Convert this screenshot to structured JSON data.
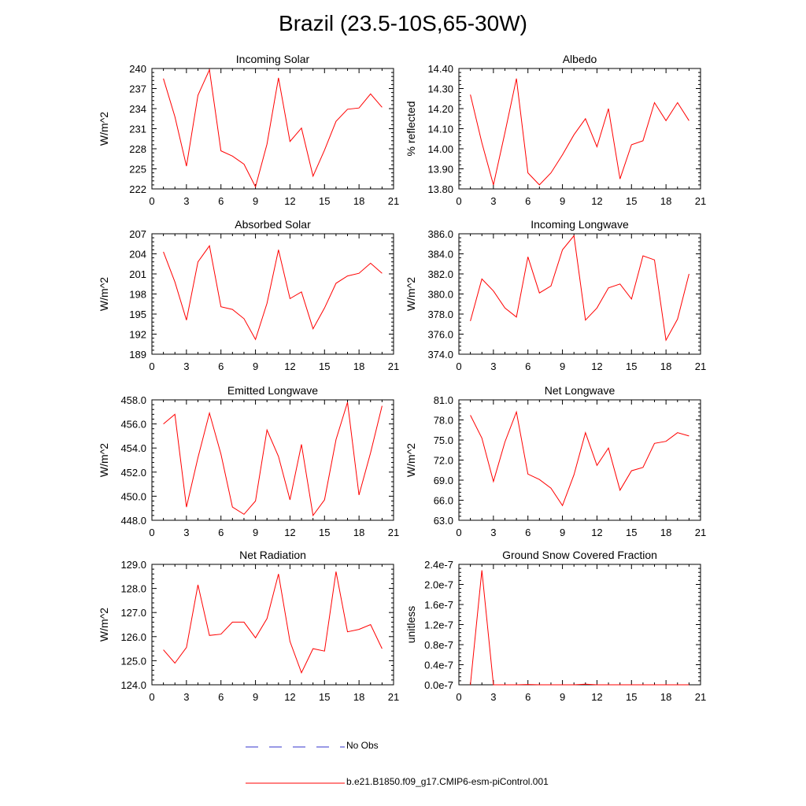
{
  "figure": {
    "title": "Brazil (23.5-10S,65-30W)"
  },
  "legend": {
    "no_obs": {
      "label": "No Obs",
      "color": "#3333cc"
    },
    "model": {
      "label": "b.e21.B1850.f09_g17.CMIP6-esm-piControl.001",
      "color": "#ff0000"
    }
  },
  "chart_data": [
    {
      "type": "line",
      "title": "Incoming Solar",
      "xlabel": "",
      "ylabel": "W/m^2",
      "xlim": [
        0,
        21
      ],
      "ylim": [
        222,
        240
      ],
      "xticks": [
        0,
        3,
        6,
        9,
        12,
        15,
        18,
        21
      ],
      "yticks": [
        222,
        225,
        228,
        231,
        234,
        237,
        240
      ],
      "ytick_labels": [
        "222",
        "225",
        "228",
        "231",
        "234",
        "237",
        "240"
      ],
      "series": [
        {
          "name": "b.e21.B1850.f09_g17.CMIP6-esm-piControl.001",
          "color": "#ff0000",
          "x": [
            1,
            2,
            3,
            4,
            5,
            6,
            7,
            8,
            9,
            10,
            11,
            12,
            13,
            14,
            15,
            16,
            17,
            18,
            19,
            20
          ],
          "values": [
            238.5,
            232.8,
            225.4,
            236.0,
            239.8,
            227.7,
            226.9,
            225.7,
            222.3,
            228.7,
            238.6,
            229.1,
            231.1,
            223.9,
            227.8,
            232.1,
            233.9,
            234.1,
            236.2,
            234.2
          ]
        }
      ]
    },
    {
      "type": "line",
      "title": "Albedo",
      "xlabel": "",
      "ylabel": "% reflected",
      "xlim": [
        0,
        21
      ],
      "ylim": [
        13.8,
        14.4
      ],
      "xticks": [
        0,
        3,
        6,
        9,
        12,
        15,
        18,
        21
      ],
      "yticks": [
        13.8,
        13.9,
        14.0,
        14.1,
        14.2,
        14.3,
        14.4
      ],
      "ytick_labels": [
        "13.80",
        "13.90",
        "14.00",
        "14.10",
        "14.20",
        "14.30",
        "14.40"
      ],
      "series": [
        {
          "name": "b.e21.B1850.f09_g17.CMIP6-esm-piControl.001",
          "color": "#ff0000",
          "x": [
            1,
            2,
            3,
            4,
            5,
            6,
            7,
            8,
            9,
            10,
            11,
            12,
            13,
            14,
            15,
            16,
            17,
            18,
            19,
            20
          ],
          "values": [
            14.27,
            14.03,
            13.82,
            14.08,
            14.35,
            13.88,
            13.82,
            13.88,
            13.97,
            14.07,
            14.15,
            14.01,
            14.2,
            13.85,
            14.02,
            14.04,
            14.23,
            14.14,
            14.23,
            14.14
          ]
        }
      ]
    },
    {
      "type": "line",
      "title": "Absorbed Solar",
      "xlabel": "",
      "ylabel": "W/m^2",
      "xlim": [
        0,
        21
      ],
      "ylim": [
        189,
        207
      ],
      "xticks": [
        0,
        3,
        6,
        9,
        12,
        15,
        18,
        21
      ],
      "yticks": [
        189,
        192,
        195,
        198,
        201,
        204,
        207
      ],
      "ytick_labels": [
        "189",
        "192",
        "195",
        "198",
        "201",
        "204",
        "207"
      ],
      "series": [
        {
          "name": "b.e21.B1850.f09_g17.CMIP6-esm-piControl.001",
          "color": "#ff0000",
          "x": [
            1,
            2,
            3,
            4,
            5,
            6,
            7,
            8,
            9,
            10,
            11,
            12,
            13,
            14,
            15,
            16,
            17,
            18,
            19,
            20
          ],
          "values": [
            204.3,
            199.8,
            194.1,
            202.8,
            205.2,
            196.1,
            195.7,
            194.3,
            191.2,
            196.6,
            204.6,
            197.3,
            198.3,
            192.8,
            195.9,
            199.6,
            200.7,
            201.1,
            202.6,
            201.1
          ]
        }
      ]
    },
    {
      "type": "line",
      "title": "Incoming Longwave",
      "xlabel": "",
      "ylabel": "W/m^2",
      "xlim": [
        0,
        21
      ],
      "ylim": [
        374,
        386
      ],
      "xticks": [
        0,
        3,
        6,
        9,
        12,
        15,
        18,
        21
      ],
      "yticks": [
        374,
        376,
        378,
        380,
        382,
        384,
        386
      ],
      "ytick_labels": [
        "374.0",
        "376.0",
        "378.0",
        "380.0",
        "382.0",
        "384.0",
        "386.0"
      ],
      "series": [
        {
          "name": "b.e21.B1850.f09_g17.CMIP6-esm-piControl.001",
          "color": "#ff0000",
          "x": [
            1,
            2,
            3,
            4,
            5,
            6,
            7,
            8,
            9,
            10,
            11,
            12,
            13,
            14,
            15,
            16,
            17,
            18,
            19,
            20
          ],
          "values": [
            377.3,
            381.5,
            380.3,
            378.6,
            377.7,
            383.7,
            380.1,
            380.8,
            384.4,
            385.8,
            377.4,
            378.6,
            380.6,
            381.0,
            379.5,
            383.8,
            383.4,
            375.4,
            377.5,
            382.0
          ]
        }
      ]
    },
    {
      "type": "line",
      "title": "Emitted Longwave",
      "xlabel": "",
      "ylabel": "W/m^2",
      "xlim": [
        0,
        21
      ],
      "ylim": [
        448,
        458
      ],
      "xticks": [
        0,
        3,
        6,
        9,
        12,
        15,
        18,
        21
      ],
      "yticks": [
        448,
        450,
        452,
        454,
        456,
        458
      ],
      "ytick_labels": [
        "448.0",
        "450.0",
        "452.0",
        "454.0",
        "456.0",
        "458.0"
      ],
      "series": [
        {
          "name": "b.e21.B1850.f09_g17.CMIP6-esm-piControl.001",
          "color": "#ff0000",
          "x": [
            1,
            2,
            3,
            4,
            5,
            6,
            7,
            8,
            9,
            10,
            11,
            12,
            13,
            14,
            15,
            16,
            17,
            18,
            19,
            20
          ],
          "values": [
            456.0,
            456.8,
            449.1,
            453.2,
            456.9,
            453.5,
            449.1,
            448.5,
            449.6,
            455.5,
            453.3,
            449.7,
            454.3,
            448.4,
            449.7,
            454.7,
            457.8,
            450.1,
            453.6,
            457.5
          ]
        }
      ]
    },
    {
      "type": "line",
      "title": "Net Longwave",
      "xlabel": "",
      "ylabel": "W/m^2",
      "xlim": [
        0,
        21
      ],
      "ylim": [
        63,
        81
      ],
      "xticks": [
        0,
        3,
        6,
        9,
        12,
        15,
        18,
        21
      ],
      "yticks": [
        63,
        66,
        69,
        72,
        75,
        78,
        81
      ],
      "ytick_labels": [
        "63.0",
        "66.0",
        "69.0",
        "72.0",
        "75.0",
        "78.0",
        "81.0"
      ],
      "series": [
        {
          "name": "b.e21.B1850.f09_g17.CMIP6-esm-piControl.001",
          "color": "#ff0000",
          "x": [
            1,
            2,
            3,
            4,
            5,
            6,
            7,
            8,
            9,
            10,
            11,
            12,
            13,
            14,
            15,
            16,
            17,
            18,
            19,
            20
          ],
          "values": [
            78.7,
            75.3,
            68.8,
            74.7,
            79.2,
            69.9,
            69.1,
            67.8,
            65.2,
            69.8,
            76.1,
            71.2,
            73.8,
            67.5,
            70.4,
            70.9,
            74.5,
            74.8,
            76.1,
            75.6
          ]
        }
      ]
    },
    {
      "type": "line",
      "title": "Net Radiation",
      "xlabel": "",
      "ylabel": "W/m^2",
      "xlim": [
        0,
        21
      ],
      "ylim": [
        124,
        129
      ],
      "xticks": [
        0,
        3,
        6,
        9,
        12,
        15,
        18,
        21
      ],
      "yticks": [
        124,
        125,
        126,
        127,
        128,
        129
      ],
      "ytick_labels": [
        "124.0",
        "125.0",
        "126.0",
        "127.0",
        "128.0",
        "129.0"
      ],
      "series": [
        {
          "name": "b.e21.B1850.f09_g17.CMIP6-esm-piControl.001",
          "color": "#ff0000",
          "x": [
            1,
            2,
            3,
            4,
            5,
            6,
            7,
            8,
            9,
            10,
            11,
            12,
            13,
            14,
            15,
            16,
            17,
            18,
            19,
            20
          ],
          "values": [
            125.45,
            124.9,
            125.55,
            128.15,
            126.05,
            126.1,
            126.6,
            126.6,
            125.95,
            126.75,
            128.6,
            125.8,
            124.5,
            125.5,
            125.4,
            128.7,
            126.2,
            126.3,
            126.5,
            125.5
          ]
        }
      ]
    },
    {
      "type": "line",
      "title": "Ground Snow Covered Fraction",
      "xlabel": "",
      "ylabel": "unitless",
      "xlim": [
        0,
        21
      ],
      "ylim": [
        0,
        2.4e-07
      ],
      "xticks": [
        0,
        3,
        6,
        9,
        12,
        15,
        18,
        21
      ],
      "yticks": [
        0,
        4e-08,
        8e-08,
        1.2e-07,
        1.6e-07,
        2e-07,
        2.4e-07
      ],
      "ytick_labels": [
        "0.0e-7",
        "0.4e-7",
        "0.8e-7",
        "1.2e-7",
        "1.6e-7",
        "2.0e-7",
        "2.4e-7"
      ],
      "series": [
        {
          "name": "b.e21.B1850.f09_g17.CMIP6-esm-piControl.001",
          "color": "#ff0000",
          "x": [
            1,
            2,
            3,
            4,
            5,
            6,
            7,
            8,
            9,
            10,
            11,
            12,
            13,
            14,
            15,
            16,
            17,
            18,
            19,
            20
          ],
          "values": [
            0,
            2.28e-07,
            0,
            0,
            0,
            7e-10,
            0,
            0,
            0,
            0,
            1.1e-09,
            0,
            0,
            0,
            0,
            0,
            0,
            0,
            0,
            0
          ]
        }
      ]
    }
  ]
}
